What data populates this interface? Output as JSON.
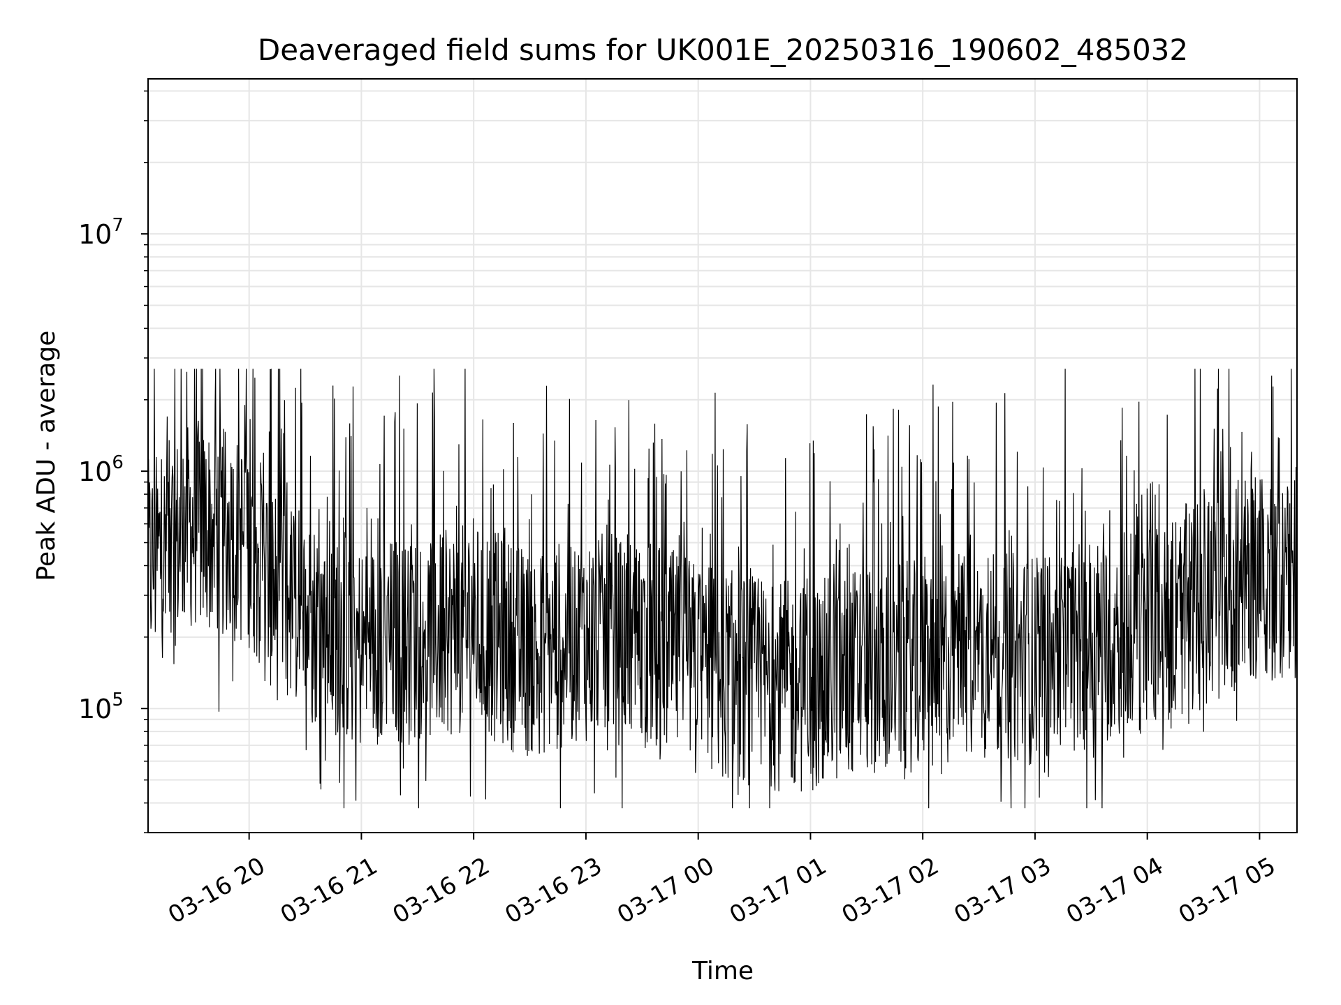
{
  "chart_data": {
    "type": "line",
    "title": "Deaveraged field sums for UK001E_20250316_190602_485032",
    "xlabel": "Time",
    "ylabel": "Peak ADU - average",
    "x_range": [
      "2025-03-16 19:06",
      "2025-03-17 05:20"
    ],
    "ylim": [
      30000,
      45000000
    ],
    "yscale": "log",
    "grid": true,
    "line_color": "#000000",
    "grid_color": "#e6e6e6",
    "x_ticks": [
      {
        "time": "2025-03-16 20:00",
        "label": "03-16 20"
      },
      {
        "time": "2025-03-16 21:00",
        "label": "03-16 21"
      },
      {
        "time": "2025-03-16 22:00",
        "label": "03-16 22"
      },
      {
        "time": "2025-03-16 23:00",
        "label": "03-16 23"
      },
      {
        "time": "2025-03-17 00:00",
        "label": "03-17 00"
      },
      {
        "time": "2025-03-17 01:00",
        "label": "03-17 01"
      },
      {
        "time": "2025-03-17 02:00",
        "label": "03-17 02"
      },
      {
        "time": "2025-03-17 03:00",
        "label": "03-17 03"
      },
      {
        "time": "2025-03-17 04:00",
        "label": "03-17 04"
      },
      {
        "time": "2025-03-17 05:00",
        "label": "03-17 05"
      }
    ],
    "y_ticks": [
      {
        "value": 100000,
        "base": "10",
        "exp": "5"
      },
      {
        "value": 1000000,
        "base": "10",
        "exp": "6"
      },
      {
        "value": 10000000,
        "base": "10",
        "exp": "7"
      }
    ],
    "series": [
      {
        "x": [
          "2025-03-16 19:06",
          "2025-03-16 19:30",
          "2025-03-16 20:00",
          "2025-03-16 20:15",
          "2025-03-16 20:30",
          "2025-03-16 21:00",
          "2025-03-16 21:30",
          "2025-03-16 22:00",
          "2025-03-16 22:30",
          "2025-03-16 23:00",
          "2025-03-16 23:30",
          "2025-03-17 00:00",
          "2025-03-17 00:30",
          "2025-03-17 01:00",
          "2025-03-17 01:30",
          "2025-03-17 02:00",
          "2025-03-17 02:30",
          "2025-03-17 03:00",
          "2025-03-17 03:30",
          "2025-03-17 04:00",
          "2025-03-17 04:30",
          "2025-03-17 05:00",
          "2025-03-17 05:20"
        ],
        "y": [
          400000,
          600000,
          500000,
          300000,
          250000,
          180000,
          200000,
          220000,
          170000,
          200000,
          190000,
          150000,
          130000,
          120000,
          150000,
          150000,
          170000,
          160000,
          190000,
          220000,
          280000,
          380000,
          350000
        ]
      }
    ]
  }
}
